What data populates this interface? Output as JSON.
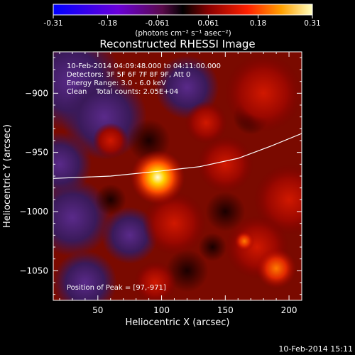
{
  "chart_data": {
    "type": "heatmap",
    "title": "Reconstructed RHESSI Image",
    "xlabel": "Heliocentric X (arcsec)",
    "ylabel": "Heliocentric Y (arcsec)",
    "xlim": [
      15,
      210
    ],
    "ylim": [
      -1075,
      -865
    ],
    "xticks": [
      "50",
      "100",
      "150",
      "200"
    ],
    "yticks": [
      "-900",
      "-950",
      "-1000",
      "-1050"
    ],
    "colorbar": {
      "ticks": [
        "-0.31",
        "-0.18",
        "-0.061",
        "0.061",
        "0.18",
        "0.31"
      ],
      "label": "(photons cm⁻² s⁻¹ asec⁻²)",
      "range": [
        -0.31,
        0.31
      ]
    },
    "annotations": {
      "time": "10-Feb-2014 04:09:48.000 to 04:11:00.000",
      "detectors": "Detectors: 3F 5F 6F 7F 8F 9F, Att 0",
      "energy": "Energy Range: 3.0 - 6.0 keV",
      "clean": "Clean    Total counts: 2.05E+04",
      "peak": "Position of Peak = [97,-971]"
    },
    "peak": {
      "x": 97,
      "y": -971
    },
    "secondary_source": {
      "x": 190,
      "y": -1048
    },
    "limb_curve": [
      [
        15,
        -972
      ],
      [
        60,
        -970
      ],
      [
        97,
        -966
      ],
      [
        130,
        -962
      ],
      [
        160,
        -955
      ],
      [
        185,
        -945
      ],
      [
        210,
        -934
      ]
    ]
  },
  "footer_timestamp": "10-Feb-2014 15:11"
}
